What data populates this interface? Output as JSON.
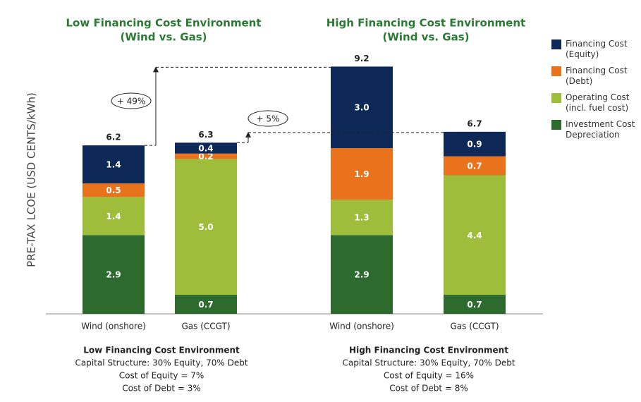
{
  "chart_data": [
    {
      "type": "bar",
      "stacked": true,
      "title": [
        "Low Financing Cost Environment",
        "(Wind vs. Gas)"
      ],
      "ylabel": "PRE-TAX LCOE (USD CENTS/kWh)",
      "categories": [
        "Wind (onshore)",
        "Gas (CCGT)"
      ],
      "series": [
        {
          "name": "Investment Cost Depreciation",
          "color": "#2c6a2e",
          "values": [
            2.9,
            0.7
          ]
        },
        {
          "name": "Operating Cost (incl. fuel cost)",
          "color": "#9dbd3b",
          "values": [
            1.4,
            5.0
          ],
          "value_labels": [
            "1.4",
            "5.0"
          ]
        },
        {
          "name": "Financing Cost (Debt)",
          "color": "#e8731c",
          "values": [
            0.5,
            0.2
          ]
        },
        {
          "name": "Financing Cost (Equity)",
          "color": "#0e2858",
          "values": [
            1.4,
            0.4
          ]
        }
      ],
      "totals": [
        6.2,
        6.3
      ],
      "annotations": [
        "+ 49%",
        "+ 5%"
      ],
      "footnotes": [
        "Low Financing Cost Environment",
        "Capital Structure: 30% Equity, 70% Debt",
        "Cost of Equity = 7%",
        "Cost of Debt = 3%"
      ],
      "ylim": [
        0,
        9.5
      ]
    },
    {
      "type": "bar",
      "stacked": true,
      "title": [
        "High Financing Cost Environment",
        "(Wind vs. Gas)"
      ],
      "categories": [
        "Wind (onshore)",
        "Gas (CCGT)"
      ],
      "series": [
        {
          "name": "Investment Cost Depreciation",
          "color": "#2c6a2e",
          "values": [
            2.9,
            0.7
          ]
        },
        {
          "name": "Operating Cost (incl. fuel cost)",
          "color": "#9dbd3b",
          "values": [
            1.3,
            4.4
          ]
        },
        {
          "name": "Financing Cost (Debt)",
          "color": "#e8731c",
          "values": [
            1.9,
            0.7
          ]
        },
        {
          "name": "Financing Cost (Equity)",
          "color": "#0e2858",
          "values": [
            3.0,
            0.9
          ],
          "value_labels": [
            "3.0",
            "0.9"
          ]
        }
      ],
      "totals": [
        9.2,
        6.7
      ],
      "footnotes": [
        "High Financing Cost Environment",
        "Capital Structure: 30% Equity, 70% Debt",
        "Cost of Equity = 16%",
        "Cost of Debt = 8%"
      ],
      "ylim": [
        0,
        9.5
      ]
    }
  ]
}
